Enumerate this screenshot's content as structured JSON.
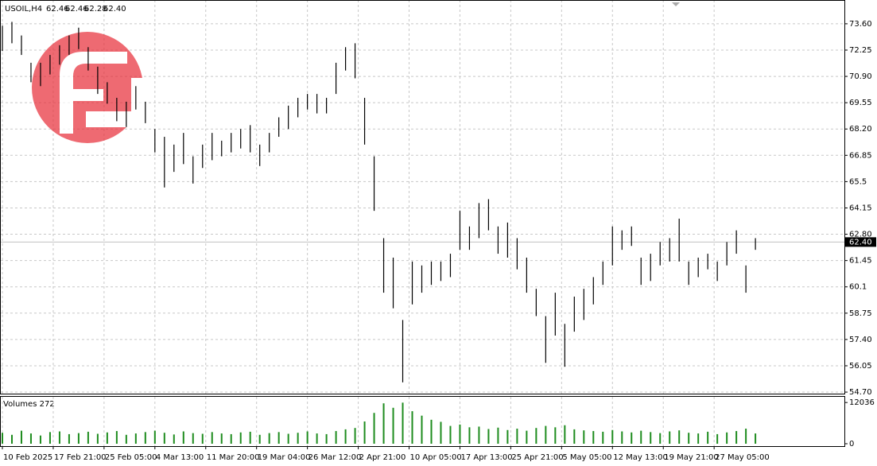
{
  "chart_data": {
    "type": "hlc-bars",
    "title": "USOIL,H4",
    "header_values": [
      "62.46",
      "62.46",
      "62.28",
      "62.40"
    ],
    "color": "#000000",
    "grid": true,
    "x": [
      0,
      3,
      6,
      9,
      12,
      15,
      18,
      21,
      24,
      27,
      30,
      33,
      36,
      39,
      42,
      45,
      48,
      51,
      54,
      57,
      60,
      63,
      66,
      69,
      72,
      75,
      78,
      81,
      84,
      87,
      90,
      93,
      96,
      99,
      102,
      105,
      108,
      111,
      114,
      117,
      120,
      123,
      126,
      129,
      132,
      135,
      138,
      141,
      144,
      147,
      150,
      153,
      156,
      159,
      162,
      165,
      168,
      171,
      174,
      177,
      180,
      183,
      186,
      189,
      192,
      195,
      198,
      201,
      204,
      207,
      210,
      213,
      216,
      219,
      222,
      225,
      228,
      231,
      234,
      237
    ],
    "high": [
      73.5,
      73.7,
      73.0,
      71.6,
      71.6,
      72.0,
      72.5,
      73.0,
      73.4,
      72.4,
      71.4,
      70.6,
      69.8,
      69.6,
      70.4,
      69.6,
      68.2,
      67.8,
      67.4,
      68.0,
      66.8,
      67.4,
      68.0,
      67.6,
      68.0,
      68.2,
      68.4,
      67.4,
      68.0,
      68.8,
      69.4,
      69.8,
      70.0,
      70.0,
      69.8,
      71.6,
      72.4,
      72.6,
      69.8,
      66.8,
      62.6,
      61.6,
      58.4,
      61.4,
      61.2,
      61.4,
      61.4,
      61.8,
      64.0,
      63.2,
      64.4,
      64.6,
      63.2,
      63.4,
      62.6,
      61.6,
      60.0,
      58.6,
      59.8,
      58.2,
      59.6,
      60.0,
      60.6,
      61.4,
      63.2,
      63.0,
      63.2,
      61.6,
      61.8,
      62.4,
      62.6,
      63.6,
      61.4,
      61.6,
      61.8,
      61.4,
      62.4,
      63.0,
      61.2,
      62.6
    ],
    "low": [
      72.2,
      72.6,
      72.0,
      70.6,
      70.4,
      71.0,
      71.5,
      72.0,
      72.3,
      71.2,
      70.0,
      69.5,
      68.6,
      68.3,
      69.2,
      68.5,
      67.0,
      65.2,
      66.0,
      66.4,
      65.4,
      66.2,
      66.6,
      66.8,
      67.0,
      67.2,
      67.0,
      66.3,
      67.0,
      67.8,
      68.2,
      68.8,
      69.2,
      69.0,
      69.0,
      70.0,
      71.2,
      70.8,
      67.4,
      64.0,
      59.8,
      59.0,
      55.2,
      59.2,
      59.8,
      60.2,
      60.4,
      60.6,
      62.0,
      62.0,
      62.6,
      63.0,
      61.8,
      61.6,
      61.0,
      59.8,
      58.6,
      56.2,
      57.6,
      56.0,
      57.8,
      58.4,
      59.2,
      60.2,
      61.2,
      62.0,
      62.2,
      60.2,
      60.4,
      61.2,
      61.4,
      61.4,
      60.2,
      60.6,
      61.0,
      60.4,
      61.2,
      61.8,
      59.8,
      62.0
    ],
    "ylim": [
      54.58,
      74.82
    ],
    "yticks": [
      {
        "value": 54.7,
        "label": "54.70"
      },
      56.05,
      {
        "value": 57.4,
        "label": "57.40"
      },
      58.75,
      60.1,
      61.45,
      {
        "value": 62.8,
        "label": "62.80"
      },
      64.15,
      65.5,
      66.85,
      {
        "value": 68.2,
        "label": "68.20"
      },
      69.55,
      {
        "value": 70.9,
        "label": "70.90"
      },
      72.25,
      {
        "value": 73.6,
        "label": "73.60"
      }
    ],
    "yticks_fix": null,
    "last_price": {
      "value": 62.4,
      "label": "62.40"
    },
    "xlim": [
      -0.5,
      265
    ],
    "xticks": [
      {
        "value": 0,
        "label": "10 Feb 2025"
      },
      {
        "value": 16,
        "label": "17 Feb 21:00"
      },
      {
        "value": 32,
        "label": "25 Feb 05:00"
      },
      {
        "value": 48,
        "label": "4 Mar 13:00"
      },
      {
        "value": 64,
        "label": "11 Mar 20:00"
      },
      {
        "value": 80,
        "label": "19 Mar 04:00"
      },
      {
        "value": 96,
        "label": "26 Mar 12:00"
      },
      {
        "value": 112,
        "label": "2 Apr 21:00"
      },
      {
        "value": 128,
        "label": "10 Apr 05:00"
      },
      {
        "value": 144,
        "label": "17 Apr 13:00"
      },
      {
        "value": 160,
        "label": "25 Apr 21:00"
      },
      {
        "value": 176,
        "label": "5 May 05:00"
      },
      {
        "value": 192,
        "label": "12 May 13:00"
      },
      {
        "value": 208,
        "label": "19 May 21:00"
      },
      {
        "value": 224,
        "label": "27 May 05:00"
      }
    ],
    "volume": {
      "title": "Volumes 272",
      "color": "#1e8c1e",
      "values": [
        3200,
        2600,
        3800,
        3000,
        2400,
        3400,
        3600,
        2800,
        3100,
        3500,
        2900,
        3300,
        3700,
        2600,
        3000,
        3400,
        3800,
        3200,
        2700,
        3600,
        3100,
        2900,
        3400,
        3000,
        2800,
        3300,
        3500,
        2600,
        3100,
        3400,
        2900,
        3200,
        3600,
        3000,
        2800,
        3700,
        4200,
        4600,
        6500,
        9000,
        11800,
        10500,
        12000,
        9500,
        8200,
        7000,
        6400,
        5200,
        5600,
        4800,
        5000,
        4300,
        4700,
        4000,
        4400,
        3800,
        4600,
        5200,
        4800,
        5400,
        4200,
        3900,
        3700,
        3500,
        4000,
        3600,
        3300,
        3800,
        3400,
        3100,
        3600,
        3900,
        3200,
        3000,
        3500,
        2800,
        3300,
        3700,
        4400,
        3000
      ],
      "ylim": [
        -700,
        13700
      ],
      "yticks": [
        12036,
        0
      ]
    }
  }
}
